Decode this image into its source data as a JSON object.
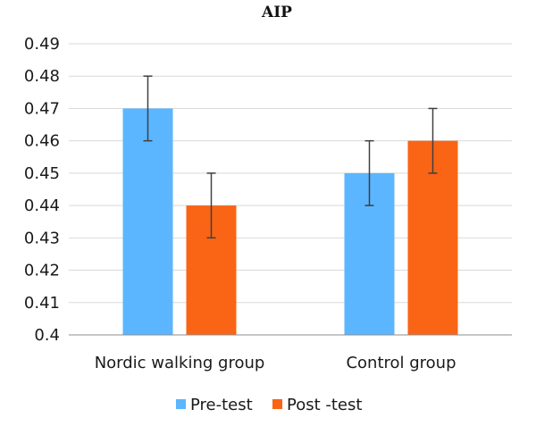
{
  "chart_data": {
    "type": "bar",
    "title": "AIP",
    "xlabel": "",
    "ylabel": "",
    "categories": [
      "Nordic walking group",
      "Control group"
    ],
    "series": [
      {
        "name": "Pre-test",
        "color": "#5BB6FF",
        "values": [
          0.47,
          0.45
        ],
        "errors": [
          0.01,
          0.01
        ]
      },
      {
        "name": "Post -test",
        "color": "#F96415",
        "values": [
          0.44,
          0.46
        ],
        "errors": [
          0.01,
          0.01
        ]
      }
    ],
    "ylim": [
      0.4,
      0.49
    ],
    "yticks": [
      "0.4",
      "0.41",
      "0.42",
      "0.43",
      "0.44",
      "0.45",
      "0.46",
      "0.47",
      "0.48",
      "0.49"
    ],
    "grid": true,
    "legend_position": "bottom",
    "gridline_color": "#d9d9d9",
    "axis_color": "#8c8c8c",
    "errorbar_color": "#404040"
  }
}
